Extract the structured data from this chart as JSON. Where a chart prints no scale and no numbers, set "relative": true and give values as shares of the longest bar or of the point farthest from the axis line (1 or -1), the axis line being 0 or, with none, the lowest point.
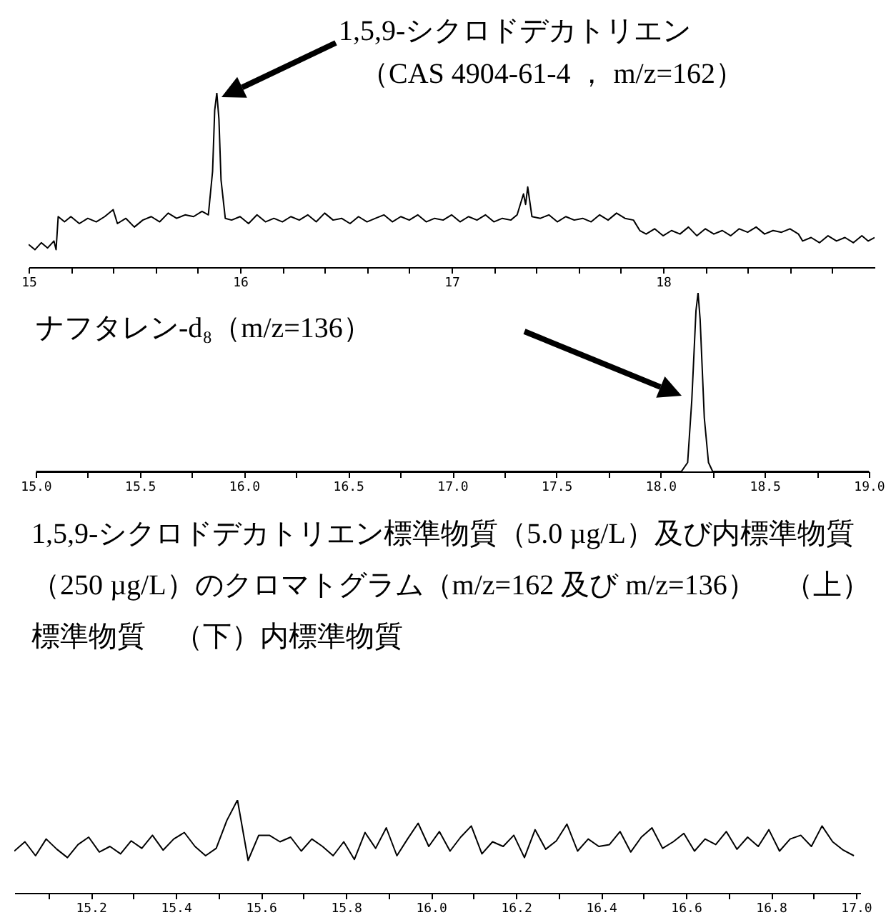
{
  "chart_data": [
    {
      "type": "line",
      "relative": true,
      "xlim": [
        15,
        19
      ],
      "xticks": [
        15,
        {
          "value": 15.2,
          "label": null
        },
        {
          "value": 15.4,
          "label": null
        },
        {
          "value": 15.6,
          "label": null
        },
        {
          "value": 15.8,
          "label": null
        },
        16,
        {
          "value": 16.2,
          "label": null
        },
        {
          "value": 16.4,
          "label": null
        },
        {
          "value": 16.6,
          "label": null
        },
        {
          "value": 16.8,
          "label": null
        },
        17,
        {
          "value": 17.2,
          "label": null
        },
        {
          "value": 17.4,
          "label": null
        },
        {
          "value": 17.6,
          "label": null
        },
        {
          "value": 17.8,
          "label": null
        },
        18,
        {
          "value": 18.2,
          "label": null
        },
        {
          "value": 18.4,
          "label": null
        },
        {
          "value": 18.6,
          "label": null
        },
        {
          "value": 18.8,
          "label": null
        }
      ],
      "series": [
        {
          "color": "#000000",
          "x": [
            15.0,
            15.03,
            15.06,
            15.09,
            15.12,
            15.13,
            15.14,
            15.17,
            15.2,
            15.24,
            15.28,
            15.32,
            15.36,
            15.4,
            15.42,
            15.46,
            15.5,
            15.54,
            15.58,
            15.62,
            15.66,
            15.7,
            15.74,
            15.78,
            15.82,
            15.85,
            15.87,
            15.88,
            15.89,
            15.9,
            15.91,
            15.93,
            15.96,
            16.0,
            16.04,
            16.08,
            16.12,
            16.16,
            16.2,
            16.24,
            16.28,
            16.32,
            16.36,
            16.4,
            16.44,
            16.48,
            16.52,
            16.56,
            16.6,
            16.64,
            16.68,
            16.72,
            16.76,
            16.8,
            16.84,
            16.88,
            16.92,
            16.96,
            17.0,
            17.04,
            17.08,
            17.12,
            17.16,
            17.2,
            17.24,
            17.28,
            17.31,
            17.34,
            17.35,
            17.36,
            17.38,
            17.42,
            17.46,
            17.5,
            17.54,
            17.58,
            17.62,
            17.66,
            17.7,
            17.74,
            17.78,
            17.82,
            17.86,
            17.89,
            17.92,
            17.96,
            18.0,
            18.04,
            18.08,
            18.12,
            18.16,
            18.2,
            18.24,
            18.28,
            18.32,
            18.36,
            18.4,
            18.44,
            18.48,
            18.52,
            18.56,
            18.6,
            18.64,
            18.66,
            18.7,
            18.74,
            18.78,
            18.82,
            18.86,
            18.9,
            18.94,
            18.97,
            19.0
          ],
          "values": [
            0.13,
            0.1,
            0.14,
            0.11,
            0.15,
            0.1,
            0.29,
            0.26,
            0.29,
            0.25,
            0.28,
            0.26,
            0.29,
            0.33,
            0.25,
            0.28,
            0.23,
            0.27,
            0.29,
            0.26,
            0.31,
            0.28,
            0.3,
            0.29,
            0.32,
            0.3,
            0.55,
            0.9,
            1,
            0.85,
            0.5,
            0.28,
            0.27,
            0.29,
            0.25,
            0.3,
            0.26,
            0.28,
            0.26,
            0.29,
            0.27,
            0.3,
            0.26,
            0.31,
            0.27,
            0.28,
            0.25,
            0.29,
            0.26,
            0.28,
            0.3,
            0.26,
            0.29,
            0.27,
            0.3,
            0.26,
            0.28,
            0.27,
            0.3,
            0.26,
            0.29,
            0.27,
            0.3,
            0.26,
            0.28,
            0.27,
            0.3,
            0.42,
            0.36,
            0.46,
            0.29,
            0.28,
            0.3,
            0.26,
            0.29,
            0.27,
            0.28,
            0.26,
            0.3,
            0.27,
            0.31,
            0.28,
            0.27,
            0.21,
            0.19,
            0.22,
            0.18,
            0.21,
            0.19,
            0.23,
            0.18,
            0.22,
            0.19,
            0.21,
            0.18,
            0.22,
            0.2,
            0.23,
            0.19,
            0.21,
            0.2,
            0.22,
            0.19,
            0.15,
            0.17,
            0.14,
            0.18,
            0.15,
            0.17,
            0.14,
            0.18,
            0.15,
            0.17
          ]
        }
      ],
      "annotations": [
        "1,5,9-シクロドデカトリエン",
        "（CAS 4904-61-4 ， m/z=162）"
      ]
    },
    {
      "type": "line",
      "relative": true,
      "xlim": [
        15,
        19
      ],
      "xticks": [
        {
          "value": 15,
          "label": "15.0"
        },
        {
          "value": 15.25,
          "label": null
        },
        {
          "value": 15.5,
          "label": "15.5"
        },
        {
          "value": 15.75,
          "label": null
        },
        {
          "value": 16,
          "label": "16.0"
        },
        {
          "value": 16.25,
          "label": null
        },
        {
          "value": 16.5,
          "label": "16.5"
        },
        {
          "value": 16.75,
          "label": null
        },
        {
          "value": 17,
          "label": "17.0"
        },
        {
          "value": 17.25,
          "label": null
        },
        {
          "value": 17.5,
          "label": "17.5"
        },
        {
          "value": 17.75,
          "label": null
        },
        {
          "value": 18,
          "label": "18.0"
        },
        {
          "value": 18.25,
          "label": null
        },
        {
          "value": 18.5,
          "label": "18.5"
        },
        {
          "value": 18.75,
          "label": null
        },
        {
          "value": 19,
          "label": "19.0"
        }
      ],
      "series": [
        {
          "color": "#000000",
          "x": [
            15.0,
            18.1,
            18.13,
            18.15,
            18.17,
            18.18,
            18.19,
            18.21,
            18.23,
            18.25,
            19.0
          ],
          "values": [
            0,
            0,
            0.05,
            0.4,
            0.9,
            1,
            0.85,
            0.3,
            0.05,
            0,
            0
          ]
        }
      ],
      "annotations": [
        "ナフタレン-d₈（m/z=136）",
        "1,5,9-シクロドデカトリエン標準物質（5.0 µg/L）及び内標準物質（250 µg/L）のクロマトグラム（m/z=162 及び m/z=136）　（上）標準物質　（下）内標準物質"
      ]
    },
    {
      "type": "line",
      "relative": true,
      "xlim": [
        15.02,
        17.01
      ],
      "xticks": [
        {
          "value": 15.1,
          "label": null
        },
        15.2,
        {
          "value": 15.3,
          "label": null
        },
        15.4,
        {
          "value": 15.5,
          "label": null
        },
        15.6,
        {
          "value": 15.7,
          "label": null
        },
        15.8,
        {
          "value": 15.9,
          "label": null
        },
        {
          "value": 16,
          "label": "16.0"
        },
        {
          "value": 16.1,
          "label": null
        },
        16.2,
        {
          "value": 16.3,
          "label": null
        },
        16.4,
        {
          "value": 16.5,
          "label": null
        },
        16.6,
        {
          "value": 16.7,
          "label": null
        },
        16.8,
        {
          "value": 16.9,
          "label": null
        },
        {
          "value": 17,
          "label": "17.0"
        }
      ],
      "series": [
        {
          "color": "#000000",
          "x": [
            15.02,
            15.045,
            15.07,
            15.095,
            15.12,
            15.145,
            15.17,
            15.195,
            15.22,
            15.245,
            15.27,
            15.295,
            15.32,
            15.345,
            15.37,
            15.395,
            15.42,
            15.445,
            15.47,
            15.495,
            15.52,
            15.545,
            15.57,
            15.595,
            15.62,
            15.645,
            15.67,
            15.695,
            15.72,
            15.745,
            15.77,
            15.795,
            15.82,
            15.845,
            15.87,
            15.895,
            15.92,
            15.945,
            15.97,
            15.995,
            16.02,
            16.045,
            16.07,
            16.095,
            16.12,
            16.145,
            16.17,
            16.195,
            16.22,
            16.245,
            16.27,
            16.295,
            16.32,
            16.345,
            16.37,
            16.395,
            16.42,
            16.445,
            16.47,
            16.495,
            16.52,
            16.545,
            16.57,
            16.595,
            16.62,
            16.645,
            16.67,
            16.695,
            16.72,
            16.745,
            16.77,
            16.795,
            16.82,
            16.845,
            16.87,
            16.895,
            16.92,
            16.945,
            16.97,
            16.995
          ],
          "values": [
            0.45,
            0.55,
            0.4,
            0.58,
            0.47,
            0.38,
            0.52,
            0.6,
            0.44,
            0.5,
            0.42,
            0.56,
            0.48,
            0.62,
            0.46,
            0.58,
            0.65,
            0.5,
            0.4,
            0.48,
            0.78,
            1.0,
            0.35,
            0.62,
            0.62,
            0.55,
            0.6,
            0.45,
            0.58,
            0.5,
            0.4,
            0.55,
            0.36,
            0.65,
            0.48,
            0.7,
            0.4,
            0.58,
            0.75,
            0.5,
            0.66,
            0.45,
            0.6,
            0.72,
            0.42,
            0.55,
            0.5,
            0.62,
            0.38,
            0.68,
            0.47,
            0.56,
            0.74,
            0.45,
            0.58,
            0.5,
            0.52,
            0.66,
            0.44,
            0.6,
            0.7,
            0.48,
            0.55,
            0.64,
            0.45,
            0.58,
            0.52,
            0.66,
            0.47,
            0.6,
            0.5,
            0.68,
            0.45,
            0.58,
            0.62,
            0.5,
            0.72,
            0.55,
            0.46,
            0.4
          ]
        }
      ]
    }
  ]
}
